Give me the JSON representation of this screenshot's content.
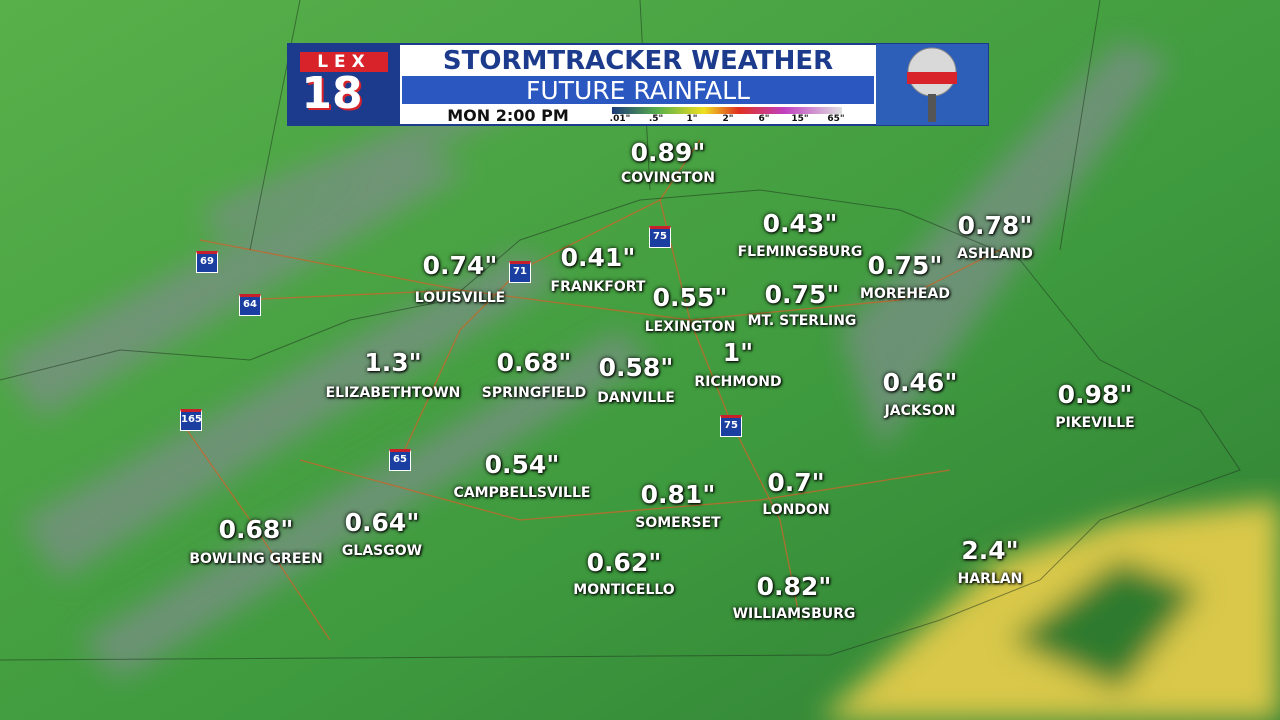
{
  "header": {
    "logo_top": "LEX",
    "logo_number": "18",
    "title": "STORMTRACKER WEATHER",
    "subtitle": "FUTURE RAINFALL",
    "time": "MON 2:00 PM",
    "scale_labels": [
      ".01\"",
      ".5\"",
      "1\"",
      "2\"",
      "6\"",
      "15\"",
      "65\""
    ]
  },
  "highways": [
    "69",
    "64",
    "71",
    "75",
    "165",
    "65",
    "75"
  ],
  "cities": [
    {
      "amount": "0.89\"",
      "name": "COVINGTON"
    },
    {
      "amount": "0.43\"",
      "name": "FLEMINGSBURG"
    },
    {
      "amount": "0.78\"",
      "name": "ASHLAND"
    },
    {
      "amount": "0.74\"",
      "name": "LOUISVILLE"
    },
    {
      "amount": "0.41\"",
      "name": "FRANKFORT"
    },
    {
      "amount": "0.75\"",
      "name": "MOREHEAD"
    },
    {
      "amount": "0.55\"",
      "name": "LEXINGTON"
    },
    {
      "amount": "0.75\"",
      "name": "MT. STERLING"
    },
    {
      "amount": "1.3\"",
      "name": "ELIZABETHTOWN"
    },
    {
      "amount": "0.68\"",
      "name": "SPRINGFIELD"
    },
    {
      "amount": "0.58\"",
      "name": "DANVILLE"
    },
    {
      "amount": "1\"",
      "name": "RICHMOND"
    },
    {
      "amount": "0.46\"",
      "name": "JACKSON"
    },
    {
      "amount": "0.98\"",
      "name": "PIKEVILLE"
    },
    {
      "amount": "0.54\"",
      "name": "CAMPBELLSVILLE"
    },
    {
      "amount": "0.81\"",
      "name": "SOMERSET"
    },
    {
      "amount": "0.7\"",
      "name": "LONDON"
    },
    {
      "amount": "0.68\"",
      "name": "BOWLING GREEN"
    },
    {
      "amount": "0.64\"",
      "name": "GLASGOW"
    },
    {
      "amount": "0.62\"",
      "name": "MONTICELLO"
    },
    {
      "amount": "0.82\"",
      "name": "WILLIAMSBURG"
    },
    {
      "amount": "2.4\"",
      "name": "HARLAN"
    }
  ]
}
